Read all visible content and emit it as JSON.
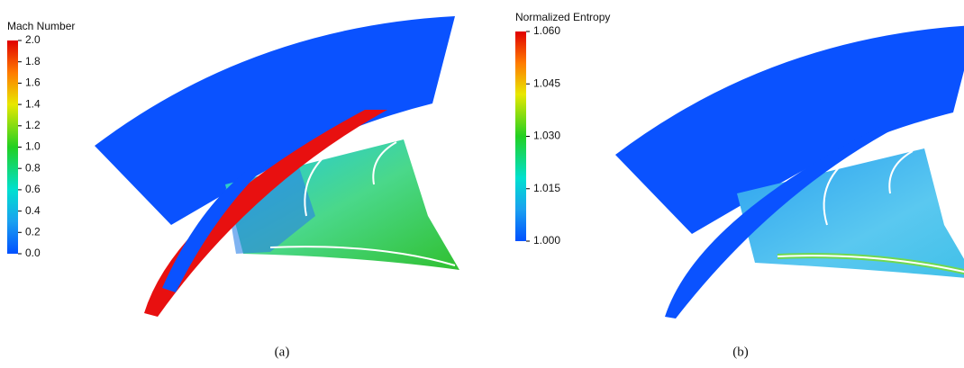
{
  "panels": [
    {
      "colorbar": {
        "title": "Mach Number",
        "ticks": [
          "2.0",
          "1.8",
          "1.6",
          "1.4",
          "1.2",
          "1.0",
          "0.8",
          "0.6",
          "0.4",
          "0.2",
          "0.0"
        ]
      },
      "caption": "(a)"
    },
    {
      "colorbar": {
        "title": "Normalized Entropy",
        "ticks": [
          "1.060",
          "1.045",
          "1.030",
          "1.015",
          "1.000"
        ]
      },
      "caption": "(b)"
    }
  ]
}
